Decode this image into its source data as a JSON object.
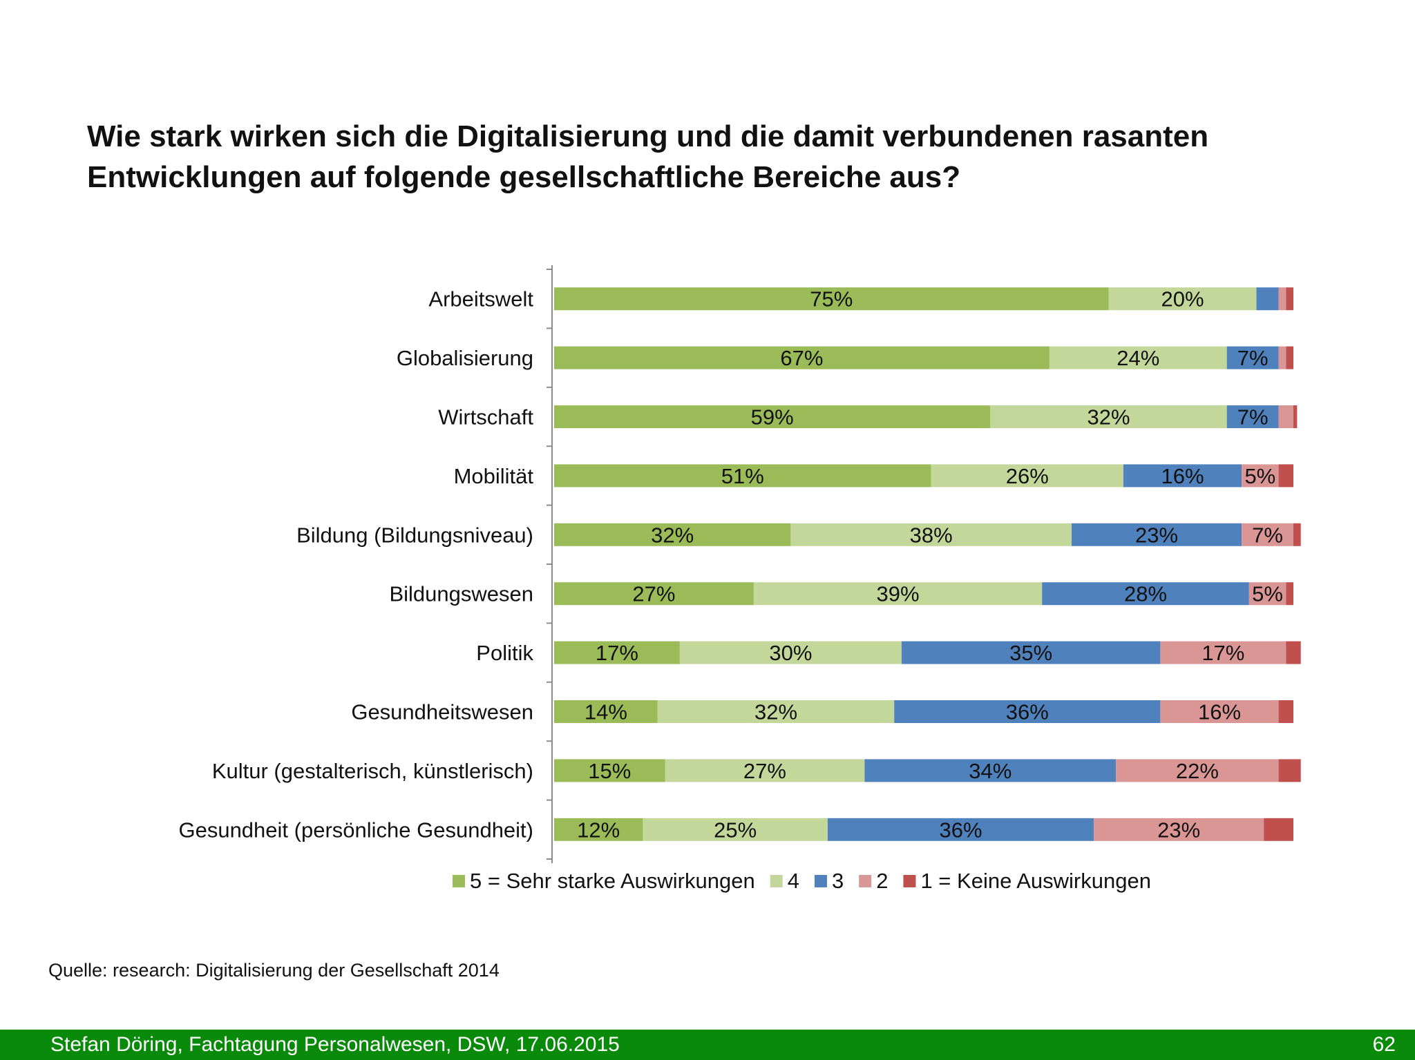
{
  "slide": {
    "title_lines": [
      "Wie stark wirken sich die Digitalisierung und die damit verbundenen rasanten",
      "Entwicklungen auf folgende gesellschaftliche Bereiche aus?"
    ],
    "source": "Quelle: research: Digitalisierung der Gesellschaft 2014",
    "footer": "Stefan Döring, Fachtagung Personalwesen, DSW, 17.06.2015",
    "page_number": "62"
  },
  "chart_data": {
    "type": "bar",
    "orientation": "horizontal",
    "stacked": true,
    "title": "",
    "xlabel": "",
    "ylabel": "",
    "xlim": [
      0,
      100
    ],
    "grid": false,
    "legend_position": "bottom",
    "categories": [
      "Arbeitswelt",
      "Globalisierung",
      "Wirtschaft",
      "Mobilität",
      "Bildung (Bildungsniveau)",
      "Bildungswesen",
      "Politik",
      "Gesundheitswesen",
      "Kultur (gestalterisch, künstlerisch)",
      "Gesundheit (persönliche Gesundheit)"
    ],
    "series": [
      {
        "name": "5 = Sehr starke Auswirkungen",
        "color": "#9bbb59",
        "values": [
          75,
          67,
          59,
          51,
          32,
          27,
          17,
          14,
          15,
          12
        ]
      },
      {
        "name": "4",
        "color": "#c4d79b",
        "values": [
          20,
          24,
          32,
          26,
          38,
          39,
          30,
          32,
          27,
          25
        ]
      },
      {
        "name": "3",
        "color": "#4f81bd",
        "values": [
          3,
          7,
          7,
          16,
          23,
          28,
          35,
          36,
          34,
          36
        ]
      },
      {
        "name": "2",
        "color": "#d99694",
        "values": [
          1,
          1,
          2,
          5,
          7,
          5,
          17,
          16,
          22,
          23
        ]
      },
      {
        "name": "1 = Keine Auswirkungen",
        "color": "#c0504d",
        "values": [
          1,
          1,
          0.5,
          2,
          1,
          1,
          2,
          2,
          3,
          4
        ]
      }
    ],
    "label_min_value": 5
  }
}
